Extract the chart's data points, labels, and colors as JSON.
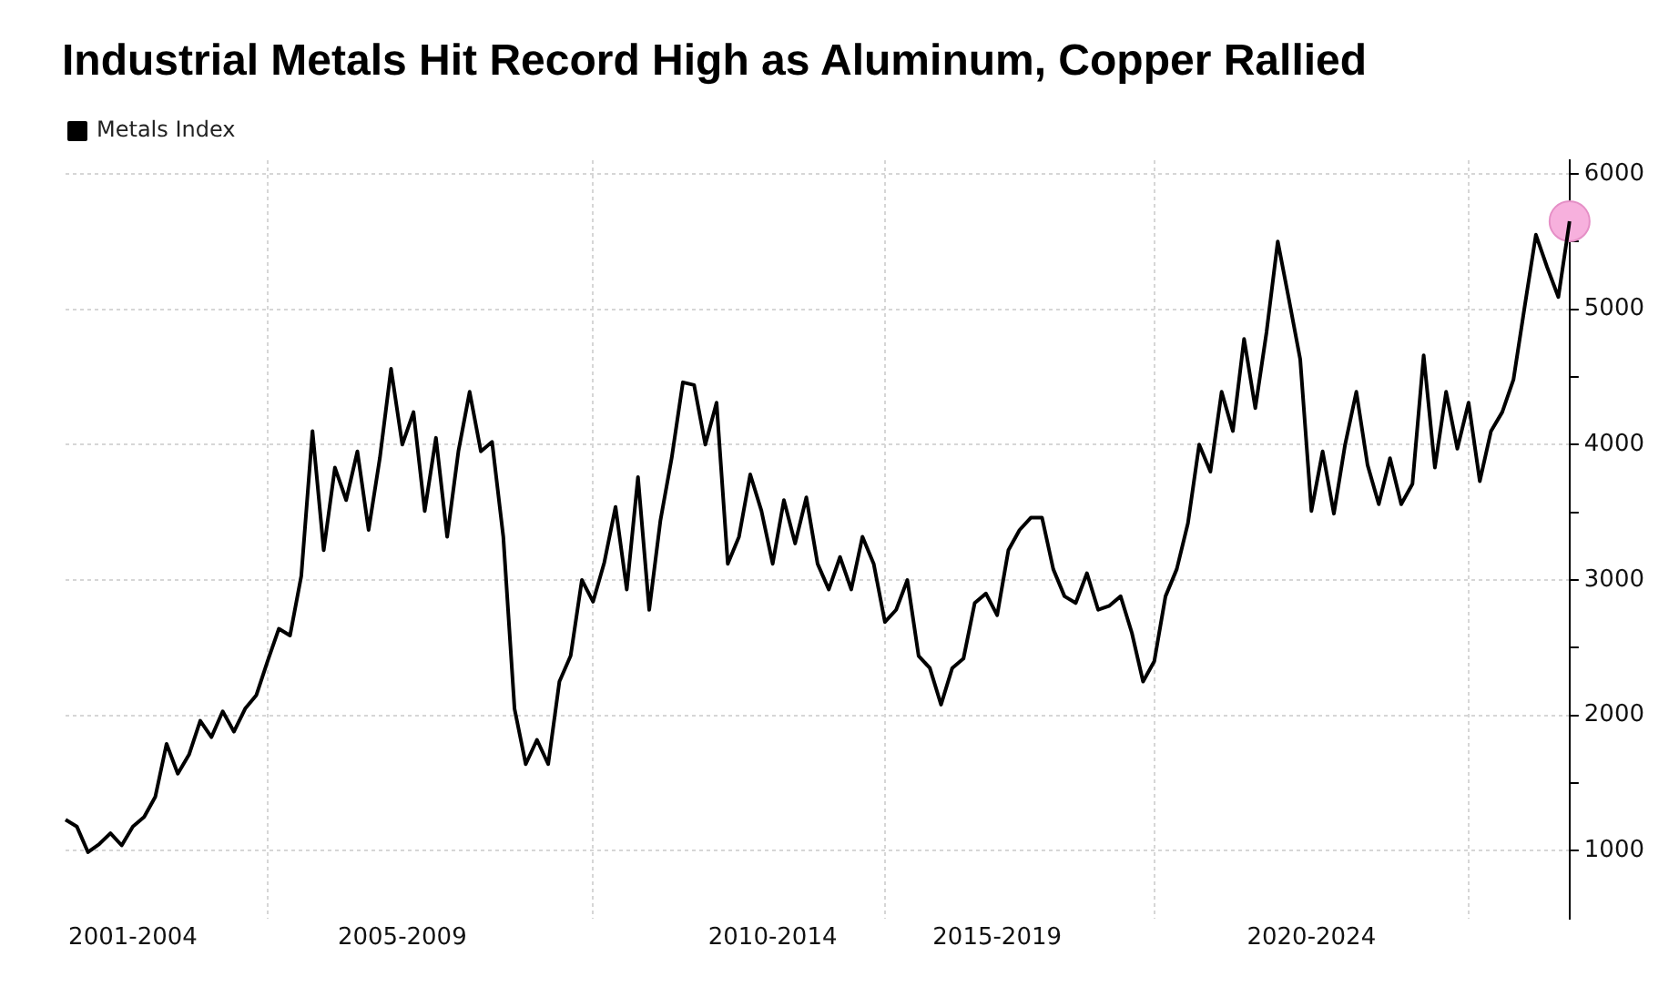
{
  "chart_data": {
    "type": "line",
    "title": "Industrial Metals Hit Record High as Aluminum, Copper Rallied",
    "categories": [
      null,
      null,
      null,
      null,
      null,
      null,
      "2001-2004",
      null,
      null,
      null,
      null,
      null,
      null,
      null,
      null,
      null,
      null,
      null,
      null,
      null,
      null,
      null,
      null,
      null,
      null,
      null,
      null,
      null,
      null,
      null,
      "2005-2009",
      null,
      null,
      null,
      null,
      null,
      null,
      null,
      null,
      null,
      null,
      null,
      null,
      null,
      null,
      null,
      null,
      null,
      null,
      null,
      null,
      null,
      null,
      null,
      null,
      null,
      null,
      null,
      null,
      null,
      null,
      null,
      null,
      "2010-2014",
      null,
      null,
      null,
      null,
      null,
      null,
      null,
      null,
      null,
      null,
      null,
      null,
      null,
      null,
      null,
      null,
      null,
      null,
      null,
      "2015-2019",
      null,
      null,
      null,
      null,
      null,
      null,
      null,
      null,
      null,
      null,
      null,
      null,
      null,
      null,
      null,
      null,
      null,
      null,
      null,
      null,
      null,
      null,
      null,
      null,
      null,
      null,
      null,
      "2020-2024",
      null,
      null,
      null,
      null,
      null,
      null,
      null,
      null,
      null,
      null,
      null,
      null,
      null,
      null,
      null,
      null,
      null,
      null,
      null,
      null,
      null,
      null,
      null
    ],
    "ylim": [
      500,
      6100
    ],
    "yticks": [
      1000,
      {
        "value": 1500,
        "label": null
      },
      2000,
      {
        "value": 2500,
        "label": null
      },
      3000,
      {
        "value": 3500,
        "label": null
      },
      4000,
      {
        "value": 4500,
        "label": null
      },
      5000,
      {
        "value": 5500,
        "label": null
      },
      6000
    ],
    "grid": true,
    "legend": "top left",
    "marker": "none",
    "line_style": "solid",
    "series": [
      {
        "name": "Metals Index",
        "color": "#000000",
        "values": [
          1230,
          1180,
          990,
          1050,
          1130,
          1040,
          1180,
          1250,
          1400,
          1790,
          1570,
          1710,
          1960,
          1840,
          2030,
          1880,
          2050,
          2150,
          2400,
          2640,
          2590,
          3030,
          4100,
          3220,
          3830,
          3590,
          3950,
          3370,
          3900,
          4560,
          4000,
          4240,
          3510,
          4050,
          3320,
          3950,
          4390,
          3950,
          4020,
          3320,
          2050,
          1640,
          1820,
          1640,
          2250,
          2440,
          3000,
          2840,
          3130,
          3540,
          2930,
          3760,
          2780,
          3440,
          3900,
          4460,
          4440,
          4000,
          4310,
          3120,
          3320,
          3780,
          3510,
          3120,
          3590,
          3270,
          3610,
          3120,
          2930,
          3170,
          2930,
          3320,
          3120,
          2690,
          2780,
          3000,
          2440,
          2350,
          2080,
          2350,
          2420,
          2830,
          2900,
          2740,
          3220,
          3370,
          3460,
          3460,
          3080,
          2880,
          2830,
          3050,
          2780,
          2810,
          2880,
          2610,
          2250,
          2400,
          2880,
          3080,
          3420,
          4000,
          3800,
          4390,
          4100,
          4780,
          4270,
          4830,
          5500,
          5070,
          4630,
          3510,
          3950,
          3490,
          4000,
          4390,
          3850,
          3560,
          3900,
          3560,
          3710,
          4660,
          3830,
          4390,
          3970,
          4310,
          3730,
          4100,
          4240,
          4480,
          5020,
          5550,
          5310,
          5090,
          5650
        ]
      },
      {
        "type": "scatter",
        "color": "#f7b0dd",
        "marker": "circle",
        "values": [
          null,
          null,
          null,
          null,
          null,
          null,
          null,
          null,
          null,
          null,
          null,
          null,
          null,
          null,
          null,
          null,
          null,
          null,
          null,
          null,
          null,
          null,
          null,
          null,
          null,
          null,
          null,
          null,
          null,
          null,
          null,
          null,
          null,
          null,
          null,
          null,
          null,
          null,
          null,
          null,
          null,
          null,
          null,
          null,
          null,
          null,
          null,
          null,
          null,
          null,
          null,
          null,
          null,
          null,
          null,
          null,
          null,
          null,
          null,
          null,
          null,
          null,
          null,
          null,
          null,
          null,
          null,
          null,
          null,
          null,
          null,
          null,
          null,
          null,
          null,
          null,
          null,
          null,
          null,
          null,
          null,
          null,
          null,
          null,
          null,
          null,
          null,
          null,
          null,
          null,
          null,
          null,
          null,
          null,
          null,
          null,
          null,
          null,
          null,
          null,
          null,
          null,
          null,
          null,
          null,
          null,
          null,
          null,
          null,
          null,
          null,
          null,
          null,
          null,
          null,
          null,
          null,
          null,
          null,
          null,
          null,
          null,
          null,
          null,
          null,
          null,
          null,
          null,
          null,
          null,
          null,
          null,
          null,
          null,
          5650
        ]
      }
    ]
  }
}
